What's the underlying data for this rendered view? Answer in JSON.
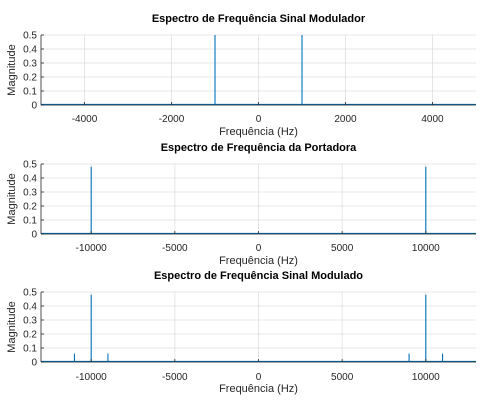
{
  "chart_data": [
    {
      "type": "line",
      "title": "Espectro de Frequência Sinal Modulador",
      "xlabel": "Frequência (Hz)",
      "ylabel": "Magnitude",
      "xlim": [
        -5000,
        5000
      ],
      "ylim": [
        0,
        0.5
      ],
      "xticks": [
        -4000,
        -2000,
        0,
        2000,
        4000
      ],
      "yticks": [
        0,
        0.1,
        0.2,
        0.3,
        0.4,
        0.5
      ],
      "grid": true,
      "line_color": "#0072BD",
      "spikes": [
        {
          "x": -1000,
          "y": 0.5
        },
        {
          "x": 1000,
          "y": 0.5
        }
      ]
    },
    {
      "type": "line",
      "title": "Espectro de Frequência da Portadora",
      "xlabel": "Frequência (Hz)",
      "ylabel": "Magnitude",
      "xlim": [
        -13000,
        13000
      ],
      "ylim": [
        0,
        0.5
      ],
      "xticks": [
        -10000,
        -5000,
        0,
        5000,
        10000
      ],
      "yticks": [
        0,
        0.1,
        0.2,
        0.3,
        0.4,
        0.5
      ],
      "grid": true,
      "line_color": "#0072BD",
      "spikes": [
        {
          "x": -10000,
          "y": 0.48
        },
        {
          "x": 10000,
          "y": 0.48
        }
      ]
    },
    {
      "type": "line",
      "title": "Espectro de Frequência Sinal Modulado",
      "xlabel": "Frequência (Hz)",
      "ylabel": "Magnitude",
      "xlim": [
        -13000,
        13000
      ],
      "ylim": [
        0,
        0.5
      ],
      "xticks": [
        -10000,
        -5000,
        0,
        5000,
        10000
      ],
      "yticks": [
        0,
        0.1,
        0.2,
        0.3,
        0.4,
        0.5
      ],
      "grid": true,
      "line_color": "#0072BD",
      "spikes": [
        {
          "x": -11000,
          "y": 0.06
        },
        {
          "x": -10000,
          "y": 0.48
        },
        {
          "x": -9000,
          "y": 0.06
        },
        {
          "x": 9000,
          "y": 0.06
        },
        {
          "x": 10000,
          "y": 0.48
        },
        {
          "x": 11000,
          "y": 0.06
        }
      ]
    }
  ]
}
